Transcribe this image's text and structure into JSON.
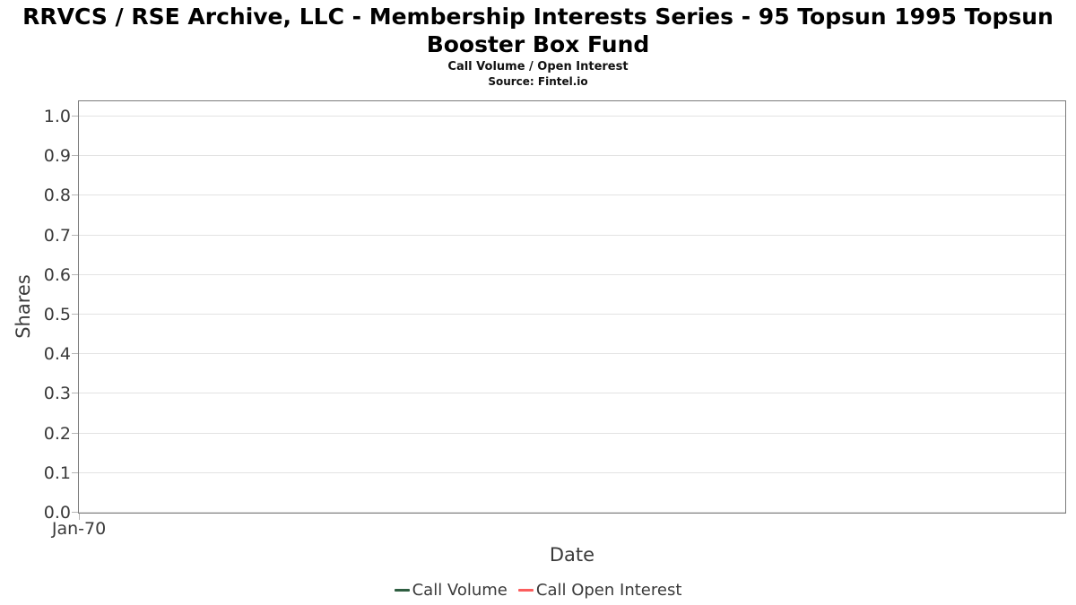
{
  "header": {
    "title_line1": "RRVCS / RSE Archive, LLC - Membership Interests Series - 95 Topsun 1995 Topsun",
    "title_line2": "Booster Box Fund",
    "subtitle": "Call Volume / Open Interest",
    "source": "Source: Fintel.io"
  },
  "chart_data": {
    "type": "line",
    "title": "RRVCS / RSE Archive, LLC - Membership Interests Series - 95 Topsun 1995 Topsun Booster Box Fund",
    "subtitle": "Call Volume / Open Interest",
    "source": "Source: Fintel.io",
    "xlabel": "Date",
    "ylabel": "Shares",
    "ylim": [
      0.0,
      1.045
    ],
    "grid": "horizontal",
    "legend_position": "bottom-center",
    "xticks": [
      {
        "label": "Jan-70",
        "position": 0
      }
    ],
    "yticks": [
      {
        "label": "1.0",
        "value": 1.0
      },
      {
        "label": "0.9",
        "value": 0.9
      },
      {
        "label": "0.8",
        "value": 0.8
      },
      {
        "label": "0.7",
        "value": 0.7
      },
      {
        "label": "0.6",
        "value": 0.6
      },
      {
        "label": "0.5",
        "value": 0.5
      },
      {
        "label": "0.4",
        "value": 0.4
      },
      {
        "label": "0.3",
        "value": 0.3
      },
      {
        "label": "0.2",
        "value": 0.2
      },
      {
        "label": "0.1",
        "value": 0.1
      },
      {
        "label": "0.0",
        "value": 0.0
      }
    ],
    "series": [
      {
        "name": "Call Volume",
        "color": "#2e5e41",
        "x": [],
        "values": []
      },
      {
        "name": "Call Open Interest",
        "color": "#fb5d5d",
        "x": [],
        "values": []
      }
    ]
  },
  "colors": {
    "call_volume": "#2e5e41",
    "call_open_interest": "#fb5d5d",
    "plot_border": "#7c7c7c",
    "gridline": "#e3e3e3",
    "axis_text": "#3a3a3a",
    "title_text": "#000000"
  }
}
